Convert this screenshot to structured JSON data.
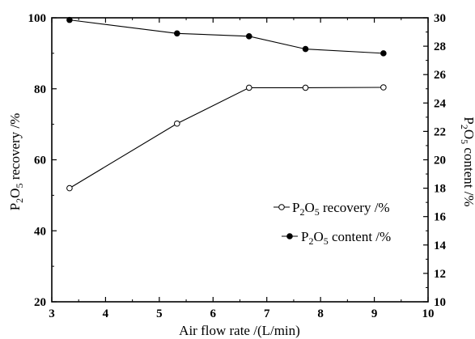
{
  "chart_data": {
    "type": "line",
    "xlabel": "Air flow rate /(L/min)",
    "ylabel_left": {
      "pre": "P",
      "sub1": "2",
      "mid": "O",
      "sub2": "5",
      "post": " recovery /%"
    },
    "ylabel_right": {
      "pre": "P",
      "sub1": "2",
      "mid": "O",
      "sub2": "5",
      "post": " content /%"
    },
    "xlim": [
      3,
      10
    ],
    "ylim_left": [
      20,
      100
    ],
    "ylim_right": [
      10,
      30
    ],
    "x_ticks": [
      "3",
      "4",
      "5",
      "6",
      "7",
      "8",
      "9",
      "10"
    ],
    "y_ticks_left": [
      "20",
      "40",
      "60",
      "80",
      "100"
    ],
    "y_ticks_right": [
      "10",
      "12",
      "14",
      "16",
      "18",
      "20",
      "22",
      "24",
      "26",
      "28",
      "30"
    ],
    "legend_position": "center-right",
    "series": [
      {
        "name": "P2O5 recovery /%",
        "legend": {
          "pre": "P",
          "sub1": "2",
          "mid": "O",
          "sub2": "5",
          "post": " recovery /%"
        },
        "axis": "left",
        "marker": "open-circle",
        "x": [
          3.33,
          5.33,
          6.67,
          7.72,
          9.17
        ],
        "y": [
          52,
          70.2,
          80.3,
          80.3,
          80.4
        ]
      },
      {
        "name": "P2O5 content /%",
        "legend": {
          "pre": "P",
          "sub1": "2",
          "mid": "O",
          "sub2": "5",
          "post": " content /%"
        },
        "axis": "right",
        "marker": "filled-circle",
        "x": [
          3.33,
          5.33,
          6.67,
          7.72,
          9.17
        ],
        "y": [
          29.85,
          28.9,
          28.7,
          27.8,
          27.5
        ]
      }
    ]
  }
}
